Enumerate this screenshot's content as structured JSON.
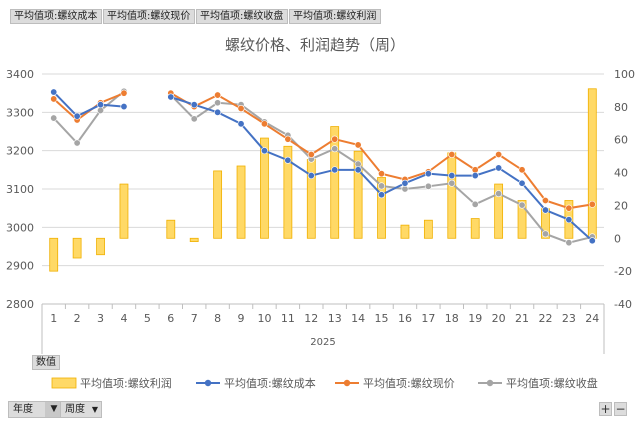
{
  "field_buttons": [
    {
      "label": "平均值项:螺纹成本"
    },
    {
      "label": "平均值项:螺纹现价"
    },
    {
      "label": "平均值项:螺纹收盘"
    },
    {
      "label": "平均值项:螺纹利润"
    }
  ],
  "values_button": "数值",
  "row_field_buttons": [
    {
      "label": "年度"
    },
    {
      "label": "周度"
    }
  ],
  "zoom": {
    "plus": "+",
    "minus": "−"
  },
  "colors": {
    "profit_fill": "#ffd966",
    "profit_stroke": "#f0b000",
    "cost": "#4472c4",
    "price": "#ed7d31",
    "close": "#a5a5a5",
    "grid": "#d9d9d9",
    "title": "#595959"
  },
  "chart_data": {
    "type": "bar+line",
    "title": "螺纹价格、利润趋势（周）",
    "x_group_label": "2025",
    "categories": [
      "1",
      "2",
      "3",
      "4",
      "5",
      "6",
      "7",
      "8",
      "9",
      "10",
      "11",
      "12",
      "13",
      "14",
      "15",
      "16",
      "17",
      "18",
      "19",
      "20",
      "21",
      "22",
      "23",
      "24"
    ],
    "y_left": {
      "min": 2800,
      "max": 3400,
      "step": 100
    },
    "y_right": {
      "min": -40,
      "max": 100,
      "step": 20
    },
    "grid": true,
    "legend_position": "bottom",
    "series": [
      {
        "name": "平均值项:螺纹利润",
        "type": "bar",
        "axis": "right",
        "values": [
          -20,
          -12,
          -10,
          33,
          null,
          11,
          -2,
          41,
          44,
          61,
          56,
          48,
          68,
          53,
          37,
          8,
          11,
          52,
          12,
          33,
          23,
          18,
          23,
          91
        ]
      },
      {
        "name": "平均值项:螺纹成本",
        "type": "line",
        "axis": "left",
        "color_key": "cost",
        "values": [
          3353,
          3290,
          3320,
          3315,
          null,
          3340,
          3320,
          3300,
          3270,
          3200,
          3175,
          3135,
          3150,
          3150,
          3085,
          3115,
          3140,
          3135,
          3135,
          3155,
          3115,
          3045,
          3020,
          2965
        ]
      },
      {
        "name": "平均值项:螺纹现价",
        "type": "line",
        "axis": "left",
        "color_key": "price",
        "values": [
          3335,
          3280,
          3325,
          3350,
          null,
          3350,
          3315,
          3345,
          3310,
          3270,
          3230,
          3190,
          3230,
          3215,
          3140,
          3125,
          3145,
          3190,
          3150,
          3190,
          3150,
          3070,
          3050,
          3060
        ]
      },
      {
        "name": "平均值项:螺纹收盘",
        "type": "line",
        "axis": "left",
        "color_key": "close",
        "values": [
          3285,
          3220,
          3305,
          3355,
          null,
          3345,
          3283,
          3325,
          3320,
          3275,
          3240,
          3178,
          3205,
          3165,
          3108,
          3100,
          3107,
          3115,
          3060,
          3088,
          3058,
          2983,
          2960,
          2975
        ]
      }
    ]
  }
}
